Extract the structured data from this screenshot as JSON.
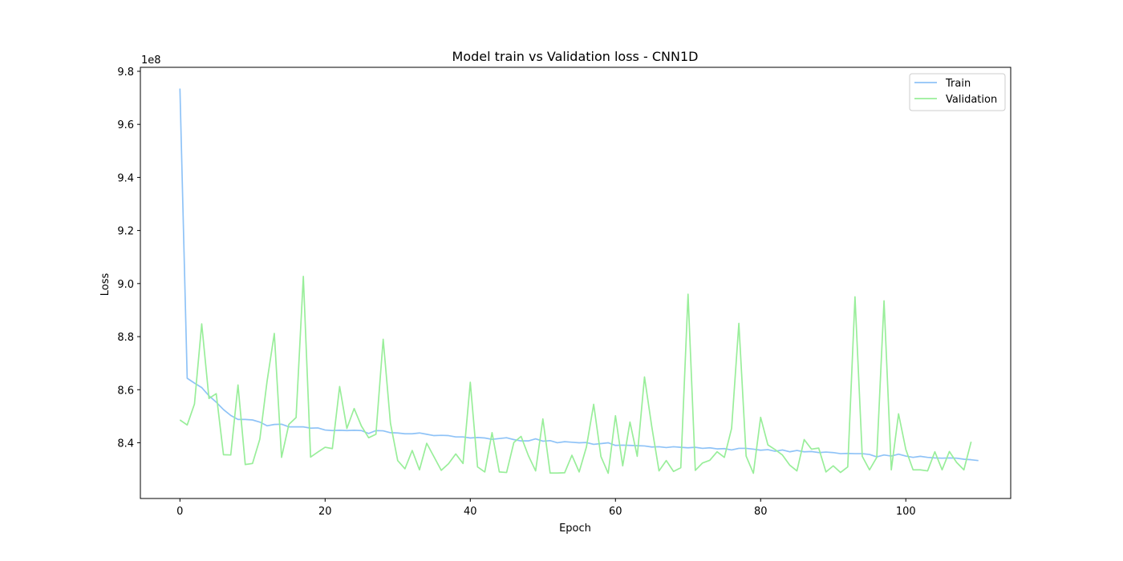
{
  "chart_data": {
    "type": "line",
    "title": "Model train vs Validation loss - CNN1D",
    "xlabel": "Epoch",
    "ylabel": "Loss",
    "y_offset_label": "1e8",
    "xlim": [
      -5.45,
      114.45
    ],
    "ylim": [
      8.19,
      9.815
    ],
    "xticks": [
      0,
      20,
      40,
      60,
      80,
      100
    ],
    "yticks": [
      8.4,
      8.6,
      8.8,
      9.0,
      9.2,
      9.4,
      9.6,
      9.8
    ],
    "ytick_labels": [
      "8.4",
      "8.6",
      "8.8",
      "9.0",
      "9.2",
      "9.4",
      "9.6",
      "9.8"
    ],
    "legend_position": "top-right",
    "grid": false,
    "series": [
      {
        "name": "Train",
        "color": "#8fc3f7",
        "values": [
          9.735,
          8.643,
          8.625,
          8.608,
          8.577,
          8.553,
          8.525,
          8.503,
          8.488,
          8.488,
          8.486,
          8.478,
          8.464,
          8.469,
          8.47,
          8.46,
          8.46,
          8.46,
          8.455,
          8.456,
          8.448,
          8.446,
          8.447,
          8.446,
          8.447,
          8.446,
          8.435,
          8.446,
          8.445,
          8.438,
          8.437,
          8.434,
          8.434,
          8.437,
          8.432,
          8.427,
          8.428,
          8.427,
          8.422,
          8.422,
          8.418,
          8.42,
          8.418,
          8.413,
          8.416,
          8.419,
          8.412,
          8.407,
          8.407,
          8.415,
          8.406,
          8.408,
          8.4,
          8.404,
          8.402,
          8.4,
          8.401,
          8.394,
          8.397,
          8.4,
          8.39,
          8.391,
          8.39,
          8.389,
          8.388,
          8.384,
          8.385,
          8.382,
          8.385,
          8.383,
          8.381,
          8.383,
          8.379,
          8.381,
          8.377,
          8.378,
          8.373,
          8.379,
          8.379,
          8.376,
          8.372,
          8.374,
          8.368,
          8.373,
          8.366,
          8.371,
          8.366,
          8.367,
          8.363,
          8.365,
          8.363,
          8.359,
          8.36,
          8.359,
          8.359,
          8.356,
          8.347,
          8.354,
          8.35,
          8.357,
          8.35,
          8.345,
          8.349,
          8.345,
          8.343,
          8.342,
          8.343,
          8.342,
          8.338,
          8.336,
          8.333
        ]
      },
      {
        "name": "Validation",
        "color": "#99ee9a",
        "values": [
          8.486,
          8.467,
          8.546,
          8.848,
          8.567,
          8.585,
          8.355,
          8.354,
          8.618,
          8.318,
          8.322,
          8.413,
          8.631,
          8.812,
          8.345,
          8.469,
          8.495,
          9.027,
          8.346,
          8.365,
          8.383,
          8.378,
          8.612,
          8.454,
          8.529,
          8.463,
          8.419,
          8.432,
          8.79,
          8.474,
          8.333,
          8.302,
          8.371,
          8.298,
          8.398,
          8.347,
          8.296,
          8.321,
          8.358,
          8.322,
          8.628,
          8.309,
          8.29,
          8.438,
          8.29,
          8.288,
          8.401,
          8.424,
          8.352,
          8.294,
          8.49,
          8.286,
          8.286,
          8.287,
          8.353,
          8.29,
          8.384,
          8.545,
          8.348,
          8.285,
          8.502,
          8.313,
          8.478,
          8.349,
          8.648,
          8.461,
          8.294,
          8.333,
          8.292,
          8.306,
          8.96,
          8.296,
          8.324,
          8.334,
          8.366,
          8.345,
          8.454,
          8.85,
          8.35,
          8.285,
          8.496,
          8.392,
          8.374,
          8.354,
          8.316,
          8.294,
          8.412,
          8.376,
          8.38,
          8.29,
          8.313,
          8.288,
          8.309,
          8.95,
          8.349,
          8.298,
          8.345,
          8.935,
          8.298,
          8.509,
          8.375,
          8.298,
          8.298,
          8.294,
          8.366,
          8.298,
          8.367,
          8.326,
          8.298,
          8.404
        ]
      }
    ]
  }
}
